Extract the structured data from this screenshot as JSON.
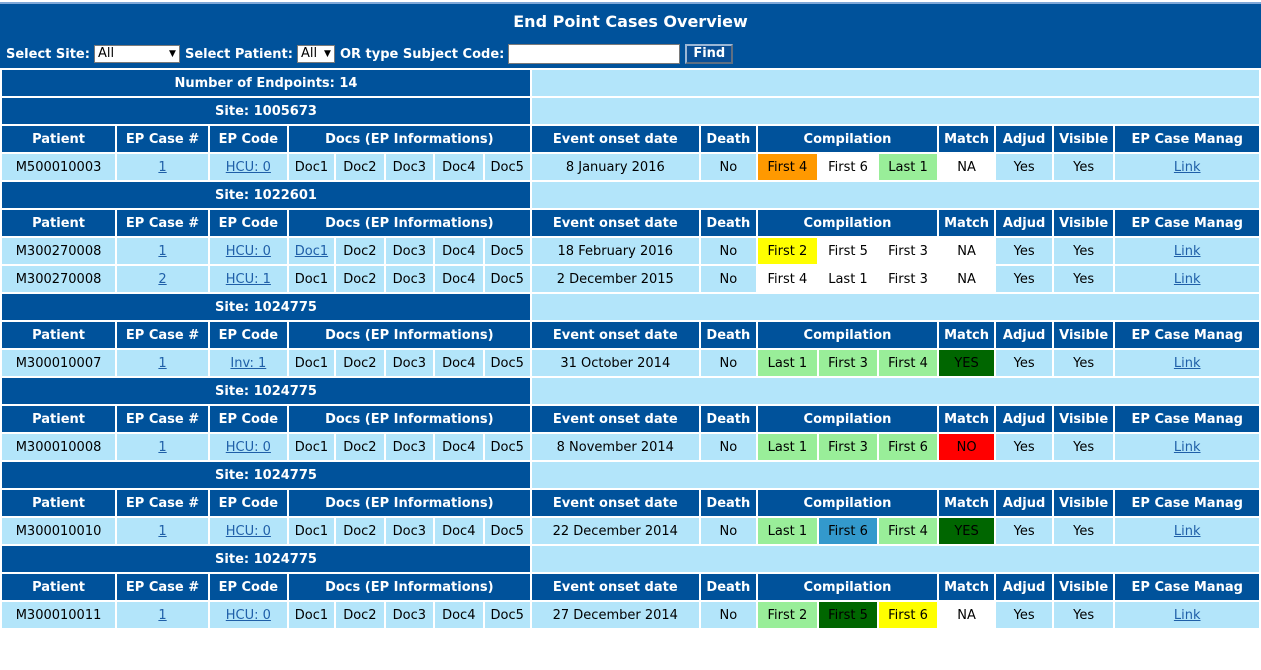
{
  "title": "End Point Cases Overview",
  "filters": {
    "site_label": "Select Site:",
    "site_value": "All",
    "patient_label": "Select Patient:",
    "patient_value": "All",
    "subject_label": "OR type Subject Code:",
    "subject_value": "",
    "find_label": "Find"
  },
  "summary": "Number of Endpoints: 14",
  "headers": {
    "patient": "Patient",
    "ep_case": "EP Case #",
    "ep_code": "EP Code",
    "docs": "Docs (EP Informations)",
    "onset": "Event onset date",
    "death": "Death",
    "compilation": "Compilation",
    "match": "Match",
    "adjud": "Adjud",
    "visible": "Visible",
    "manage": "EP Case Manag"
  },
  "colors": {
    "header_bg": "#00529b",
    "row_bg": "#b3e5fa",
    "white": "#ffffff",
    "orange": "#ff9900",
    "lgreen": "#99ee99",
    "yellow": "#ffff00",
    "blue": "#3399cc",
    "dgreen": "#006600",
    "red": "#ff0000"
  },
  "groups": [
    {
      "site": "Site: 1005673",
      "rows": [
        {
          "patient": "M500010003",
          "ep_case": "1",
          "ep_code": "HCU: 0",
          "docs": [
            {
              "t": "Doc1",
              "l": false
            },
            {
              "t": "Doc2",
              "l": false
            },
            {
              "t": "Doc3",
              "l": false
            },
            {
              "t": "Doc4",
              "l": false
            },
            {
              "t": "Doc5",
              "l": false
            }
          ],
          "onset": "8 January 2016",
          "death": "No",
          "comp": [
            {
              "t": "First 4",
              "c": "orange"
            },
            {
              "t": "First 6",
              "c": "white"
            },
            {
              "t": "Last 1",
              "c": "lgreen"
            }
          ],
          "match": {
            "t": "NA",
            "c": "white"
          },
          "adjud": "Yes",
          "visible": "Yes",
          "link": "Link"
        }
      ]
    },
    {
      "site": "Site: 1022601",
      "rows": [
        {
          "patient": "M300270008",
          "ep_case": "1",
          "ep_code": "HCU: 0",
          "docs": [
            {
              "t": "Doc1",
              "l": true
            },
            {
              "t": "Doc2",
              "l": false
            },
            {
              "t": "Doc3",
              "l": false
            },
            {
              "t": "Doc4",
              "l": false
            },
            {
              "t": "Doc5",
              "l": false
            }
          ],
          "onset": "18 February 2016",
          "death": "No",
          "comp": [
            {
              "t": "First 2",
              "c": "yellow"
            },
            {
              "t": "First 5",
              "c": "white"
            },
            {
              "t": "First 3",
              "c": "white"
            }
          ],
          "match": {
            "t": "NA",
            "c": "white"
          },
          "adjud": "Yes",
          "visible": "Yes",
          "link": "Link"
        },
        {
          "patient": "M300270008",
          "ep_case": "2",
          "ep_code": "HCU: 1",
          "docs": [
            {
              "t": "Doc1",
              "l": false
            },
            {
              "t": "Doc2",
              "l": false
            },
            {
              "t": "Doc3",
              "l": false
            },
            {
              "t": "Doc4",
              "l": false
            },
            {
              "t": "Doc5",
              "l": false
            }
          ],
          "onset": "2 December 2015",
          "death": "No",
          "comp": [
            {
              "t": "First 4",
              "c": "white"
            },
            {
              "t": "Last 1",
              "c": "white"
            },
            {
              "t": "First 3",
              "c": "white"
            }
          ],
          "match": {
            "t": "NA",
            "c": "white"
          },
          "adjud": "Yes",
          "visible": "Yes",
          "link": "Link"
        }
      ]
    },
    {
      "site": "Site: 1024775",
      "rows": [
        {
          "patient": "M300010007",
          "ep_case": "1",
          "ep_code": "Inv: 1",
          "docs": [
            {
              "t": "Doc1",
              "l": false
            },
            {
              "t": "Doc2",
              "l": false
            },
            {
              "t": "Doc3",
              "l": false
            },
            {
              "t": "Doc4",
              "l": false
            },
            {
              "t": "Doc5",
              "l": false
            }
          ],
          "onset": "31 October 2014",
          "death": "No",
          "comp": [
            {
              "t": "Last 1",
              "c": "lgreen"
            },
            {
              "t": "First 3",
              "c": "lgreen"
            },
            {
              "t": "First 4",
              "c": "lgreen"
            }
          ],
          "match": {
            "t": "YES",
            "c": "dgreen"
          },
          "adjud": "Yes",
          "visible": "Yes",
          "link": "Link"
        }
      ]
    },
    {
      "site": "Site: 1024775",
      "rows": [
        {
          "patient": "M300010008",
          "ep_case": "1",
          "ep_code": "HCU: 0",
          "docs": [
            {
              "t": "Doc1",
              "l": false
            },
            {
              "t": "Doc2",
              "l": false
            },
            {
              "t": "Doc3",
              "l": false
            },
            {
              "t": "Doc4",
              "l": false
            },
            {
              "t": "Doc5",
              "l": false
            }
          ],
          "onset": "8 November 2014",
          "death": "No",
          "comp": [
            {
              "t": "Last 1",
              "c": "lgreen"
            },
            {
              "t": "First 3",
              "c": "lgreen"
            },
            {
              "t": "First 6",
              "c": "lgreen"
            }
          ],
          "match": {
            "t": "NO",
            "c": "red"
          },
          "adjud": "Yes",
          "visible": "Yes",
          "link": "Link"
        }
      ]
    },
    {
      "site": "Site: 1024775",
      "rows": [
        {
          "patient": "M300010010",
          "ep_case": "1",
          "ep_code": "HCU: 0",
          "docs": [
            {
              "t": "Doc1",
              "l": false
            },
            {
              "t": "Doc2",
              "l": false
            },
            {
              "t": "Doc3",
              "l": false
            },
            {
              "t": "Doc4",
              "l": false
            },
            {
              "t": "Doc5",
              "l": false
            }
          ],
          "onset": "22 December 2014",
          "death": "No",
          "comp": [
            {
              "t": "Last 1",
              "c": "lgreen"
            },
            {
              "t": "First 6",
              "c": "blue"
            },
            {
              "t": "First 4",
              "c": "lgreen"
            }
          ],
          "match": {
            "t": "YES",
            "c": "dgreen"
          },
          "adjud": "Yes",
          "visible": "Yes",
          "link": "Link"
        }
      ]
    },
    {
      "site": "Site: 1024775",
      "rows": [
        {
          "patient": "M300010011",
          "ep_case": "1",
          "ep_code": "HCU: 0",
          "docs": [
            {
              "t": "Doc1",
              "l": false
            },
            {
              "t": "Doc2",
              "l": false
            },
            {
              "t": "Doc3",
              "l": false
            },
            {
              "t": "Doc4",
              "l": false
            },
            {
              "t": "Doc5",
              "l": false
            }
          ],
          "onset": "27 December 2014",
          "death": "No",
          "comp": [
            {
              "t": "First 2",
              "c": "lgreen"
            },
            {
              "t": "First 5",
              "c": "dgreen"
            },
            {
              "t": "First 6",
              "c": "yellow"
            }
          ],
          "match": {
            "t": "NA",
            "c": "white"
          },
          "adjud": "Yes",
          "visible": "Yes",
          "link": "Link"
        }
      ]
    }
  ]
}
